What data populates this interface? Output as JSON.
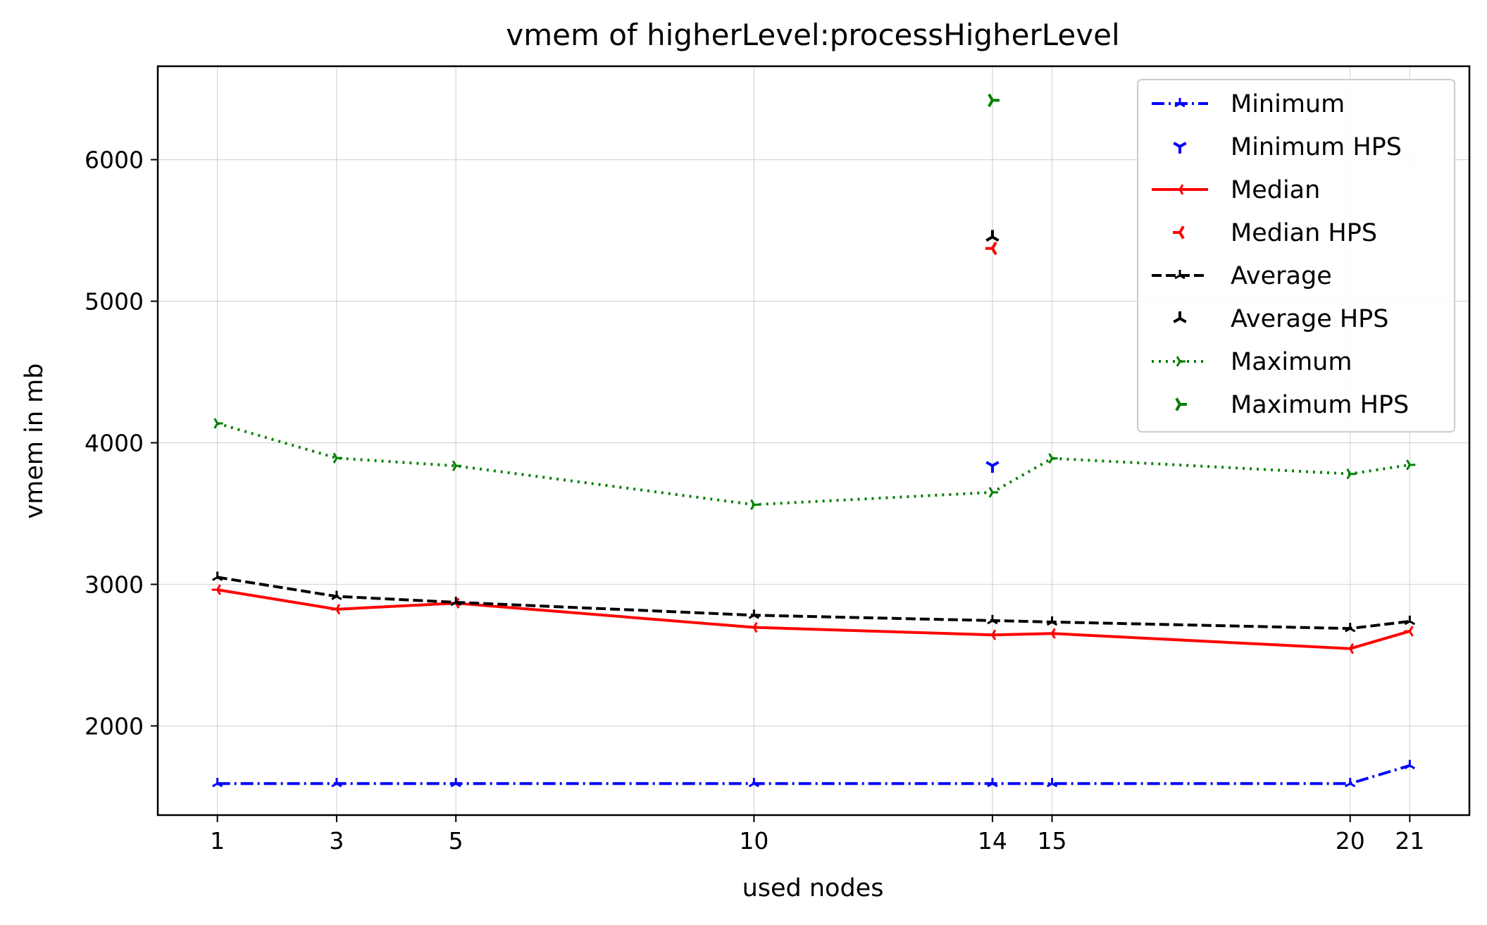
{
  "chart_data": {
    "type": "line",
    "title": "vmem of higherLevel:processHigherLevel",
    "xlabel": "used nodes",
    "ylabel": "vmem in mb",
    "x": [
      1,
      3,
      5,
      10,
      14,
      15,
      20,
      21
    ],
    "x_ticks": [
      "1",
      "3",
      "5",
      "10",
      "14",
      "15",
      "20",
      "21"
    ],
    "y_ticks": [
      "2000",
      "3000",
      "4000",
      "5000",
      "6000"
    ],
    "xlim": [
      0.0,
      22.0
    ],
    "ylim": [
      1370,
      6660
    ],
    "grid": true,
    "legend_position": "top-right",
    "series": [
      {
        "name": "Minimum",
        "color": "#0000ff",
        "style": "dashdot",
        "marker": "tri_down",
        "x": [
          1,
          3,
          5,
          10,
          14,
          15,
          20,
          21
        ],
        "values": [
          1593,
          1593,
          1593,
          1593,
          1593,
          1593,
          1593,
          1720
        ]
      },
      {
        "name": "Minimum HPS",
        "color": "#0000ff",
        "style": "none",
        "marker": "tri_up",
        "x": [
          14
        ],
        "values": [
          3838
        ]
      },
      {
        "name": "Median",
        "color": "#ff0000",
        "style": "solid",
        "marker": "tri_right",
        "x": [
          1,
          3,
          5,
          10,
          14,
          15,
          20,
          21
        ],
        "values": [
          2962,
          2824,
          2867,
          2696,
          2643,
          2653,
          2546,
          2669
        ]
      },
      {
        "name": "Median HPS",
        "color": "#ff0000",
        "style": "none",
        "marker": "tri_right",
        "x": [
          14
        ],
        "values": [
          5373
        ]
      },
      {
        "name": "Average",
        "color": "#000000",
        "style": "dashed",
        "marker": "tri_down",
        "x": [
          1,
          3,
          5,
          10,
          14,
          15,
          20,
          21
        ],
        "values": [
          3050,
          2915,
          2873,
          2782,
          2744,
          2734,
          2688,
          2739
        ]
      },
      {
        "name": "Average HPS",
        "color": "#000000",
        "style": "none",
        "marker": "tri_down",
        "x": [
          14
        ],
        "values": [
          5454
        ]
      },
      {
        "name": "Maximum",
        "color": "#008000",
        "style": "dotted",
        "marker": "tri_left",
        "x": [
          1,
          3,
          5,
          10,
          14,
          15,
          20,
          21
        ],
        "values": [
          4137,
          3892,
          3837,
          3563,
          3650,
          3890,
          3780,
          3844
        ]
      },
      {
        "name": "Maximum HPS",
        "color": "#008000",
        "style": "none",
        "marker": "tri_left",
        "x": [
          14
        ],
        "values": [
          6419
        ]
      }
    ]
  }
}
